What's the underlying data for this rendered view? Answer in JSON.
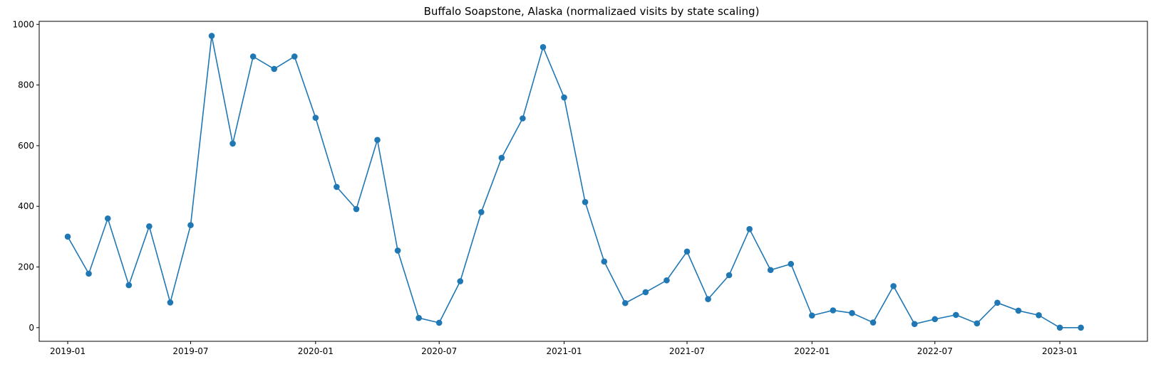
{
  "chart_data": {
    "type": "line",
    "title": "Buffalo Soapstone, Alaska (normalizaed visits by state scaling)",
    "xlabel": "",
    "ylabel": "",
    "grid": false,
    "marker": "circle",
    "color": "#1f77b4",
    "x": [
      "2019-01",
      "2019-02",
      "2019-03",
      "2019-04",
      "2019-05",
      "2019-06",
      "2019-07",
      "2019-08",
      "2019-09",
      "2019-10",
      "2019-11",
      "2019-12",
      "2020-01",
      "2020-02",
      "2020-03",
      "2020-04",
      "2020-05",
      "2020-06",
      "2020-07",
      "2020-08",
      "2020-09",
      "2020-10",
      "2020-11",
      "2020-12",
      "2021-01",
      "2021-02",
      "2021-03",
      "2021-04",
      "2021-05",
      "2021-06",
      "2021-07",
      "2021-08",
      "2021-09",
      "2021-10",
      "2021-11",
      "2021-12",
      "2022-01",
      "2022-02",
      "2022-03",
      "2022-04",
      "2022-05",
      "2022-06",
      "2022-07",
      "2022-08",
      "2022-09",
      "2022-10",
      "2022-11",
      "2022-12",
      "2023-01",
      "2023-02"
    ],
    "values": [
      300,
      178,
      360,
      140,
      334,
      83,
      338,
      962,
      607,
      894,
      853,
      894,
      692,
      464,
      391,
      619,
      254,
      32,
      16,
      153,
      381,
      560,
      690,
      925,
      759,
      414,
      218,
      81,
      117,
      156,
      251,
      94,
      173,
      325,
      190,
      210,
      40,
      57,
      48,
      17,
      137,
      12,
      28,
      42,
      14,
      82,
      56,
      41,
      0,
      0
    ],
    "xlim": [
      "2018-11-20",
      "2023-05-10"
    ],
    "ylim": [
      -45,
      1010
    ],
    "xticks": [
      "2019-01",
      "2019-07",
      "2020-01",
      "2020-07",
      "2021-01",
      "2021-07",
      "2022-01",
      "2022-07",
      "2023-01"
    ],
    "yticks": [
      0,
      200,
      400,
      600,
      800,
      1000
    ]
  }
}
